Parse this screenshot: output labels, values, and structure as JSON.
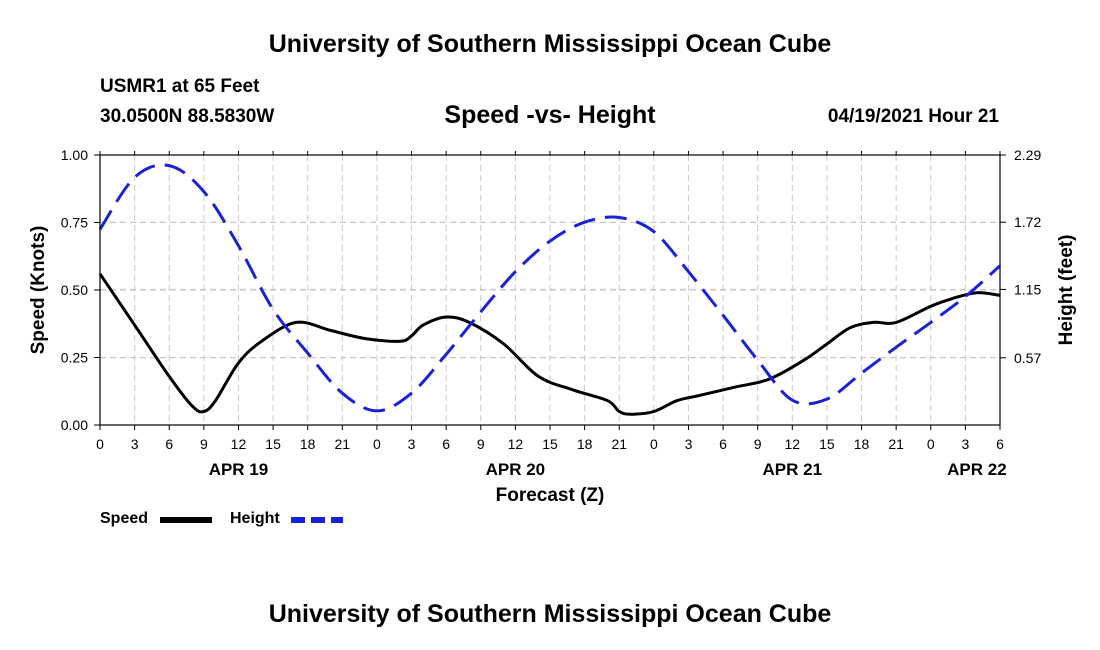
{
  "header": {
    "title": "University of Southern Mississippi Ocean Cube",
    "station": "USMR1 at 65 Feet",
    "coords": "30.0500N  88.5830W",
    "subtitle": "Speed -vs- Height",
    "datetime": "04/19/2021 Hour 21"
  },
  "footer": {
    "title": "University of Southern Mississippi Ocean Cube"
  },
  "chart_data": {
    "type": "line",
    "title": "Speed -vs- Height",
    "xlabel": "Forecast (Z)",
    "ylabel": "Speed (Knots)",
    "y2label": "Height (feet)",
    "xlim": [
      0,
      78
    ],
    "ylim": [
      0,
      1
    ],
    "y2lim": [
      0.0,
      2.29
    ],
    "grid": true,
    "x_tick_labels": [
      "0",
      "3",
      "6",
      "9",
      "12",
      "15",
      "18",
      "21",
      "0",
      "3",
      "6",
      "9",
      "12",
      "15",
      "18",
      "21",
      "0",
      "3",
      "6",
      "9",
      "12",
      "15",
      "18",
      "21",
      "0",
      "3",
      "6"
    ],
    "y_ticks": [
      0.0,
      0.25,
      0.5,
      0.75,
      1.0
    ],
    "y_tick_labels": [
      "0.00",
      "0.25",
      "0.50",
      "0.75",
      "1.00"
    ],
    "y2_ticks": [
      0.57,
      1.15,
      1.72,
      2.29
    ],
    "y2_tick_labels": [
      "0.57",
      "1.15",
      "1.72",
      "2.29"
    ],
    "date_labels": [
      {
        "label": "APR 19",
        "x": 12
      },
      {
        "label": "APR 20",
        "x": 36
      },
      {
        "label": "APR 21",
        "x": 60
      },
      {
        "label": "APR 22",
        "x": 76
      }
    ],
    "series": [
      {
        "name": "Speed",
        "axis": "left",
        "color": "#000000",
        "style": "solid",
        "x": [
          0,
          3,
          6,
          8,
          9,
          10,
          12,
          14,
          17,
          20,
          23,
          26,
          27,
          28,
          30,
          32,
          35,
          38,
          41,
          44,
          45,
          46,
          48,
          50,
          52,
          55,
          58,
          61,
          63,
          65,
          67,
          69,
          72,
          74,
          76,
          78
        ],
        "y": [
          0.56,
          0.37,
          0.18,
          0.07,
          0.05,
          0.09,
          0.23,
          0.31,
          0.38,
          0.35,
          0.32,
          0.31,
          0.33,
          0.37,
          0.4,
          0.38,
          0.3,
          0.18,
          0.13,
          0.09,
          0.05,
          0.04,
          0.05,
          0.09,
          0.11,
          0.14,
          0.17,
          0.24,
          0.3,
          0.36,
          0.38,
          0.38,
          0.44,
          0.47,
          0.49,
          0.48
        ]
      },
      {
        "name": "Height",
        "axis": "right",
        "color": "#1a22d6",
        "style": "dashed",
        "x": [
          0,
          3,
          6,
          9,
          12,
          15,
          18,
          21,
          24,
          27,
          30,
          33,
          36,
          39,
          42,
          45,
          48,
          51,
          54,
          57,
          60,
          63,
          66,
          69,
          72,
          75,
          78
        ],
        "y": [
          1.66,
          2.1,
          2.2,
          1.98,
          1.52,
          0.98,
          0.61,
          0.27,
          0.12,
          0.27,
          0.6,
          0.96,
          1.3,
          1.56,
          1.72,
          1.76,
          1.64,
          1.3,
          0.93,
          0.55,
          0.21,
          0.22,
          0.44,
          0.66,
          0.87,
          1.09,
          1.35
        ]
      }
    ]
  }
}
